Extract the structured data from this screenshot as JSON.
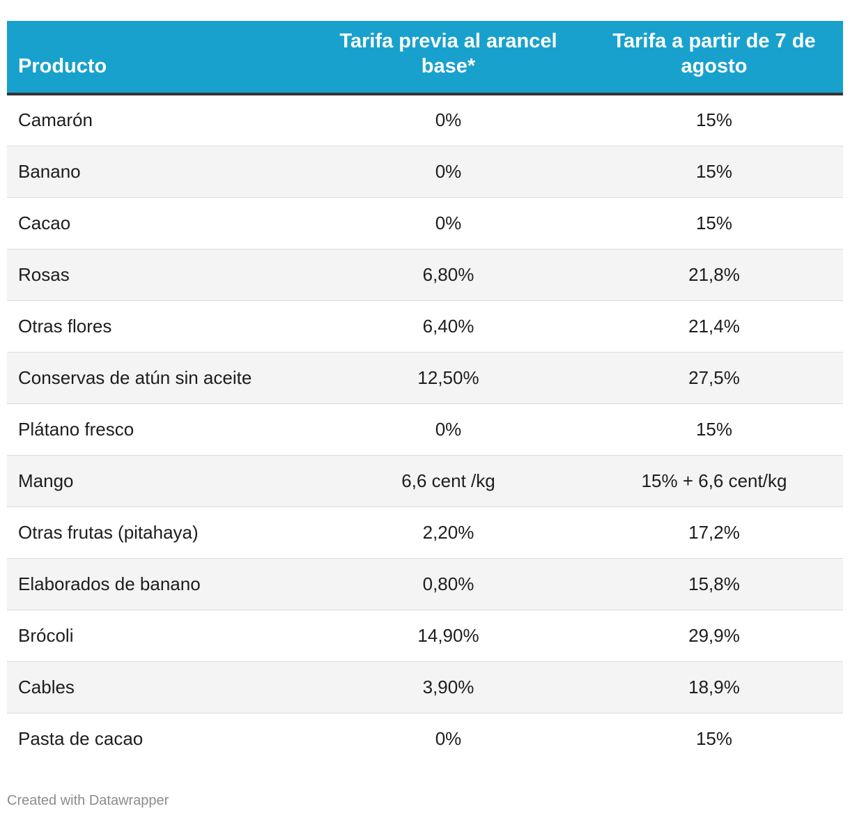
{
  "chart_data": {
    "type": "table",
    "columns": [
      "Producto",
      "Tarifa previa al arancel base*",
      "Tarifa a partir de 7 de agosto"
    ],
    "rows": [
      [
        "Camarón",
        "0%",
        "15%"
      ],
      [
        "Banano",
        "0%",
        "15%"
      ],
      [
        "Cacao",
        "0%",
        "15%"
      ],
      [
        "Rosas",
        "6,80%",
        "21,8%"
      ],
      [
        "Otras flores",
        "6,40%",
        "21,4%"
      ],
      [
        "Conservas de atún sin aceite",
        "12,50%",
        "27,5%"
      ],
      [
        "Plátano fresco",
        "0%",
        "15%"
      ],
      [
        "Mango",
        "6,6 cent /kg",
        "15% + 6,6 cent/kg"
      ],
      [
        "Otras frutas (pitahaya)",
        "2,20%",
        "17,2%"
      ],
      [
        "Elaborados de banano",
        "0,80%",
        "15,8%"
      ],
      [
        "Brócoli",
        "14,90%",
        "29,9%"
      ],
      [
        "Cables",
        "3,90%",
        "18,9%"
      ],
      [
        "Pasta de cacao",
        "0%",
        "15%"
      ]
    ]
  },
  "colors": {
    "header_background": "#18a1cd",
    "header_text": "#ffffff",
    "header_rule": "#333333",
    "striped_row": "#f4f4f4",
    "row_divider": "#dcdcdc",
    "credit_text": "#8c8c8c"
  },
  "footer": {
    "credit": "Created with Datawrapper"
  }
}
